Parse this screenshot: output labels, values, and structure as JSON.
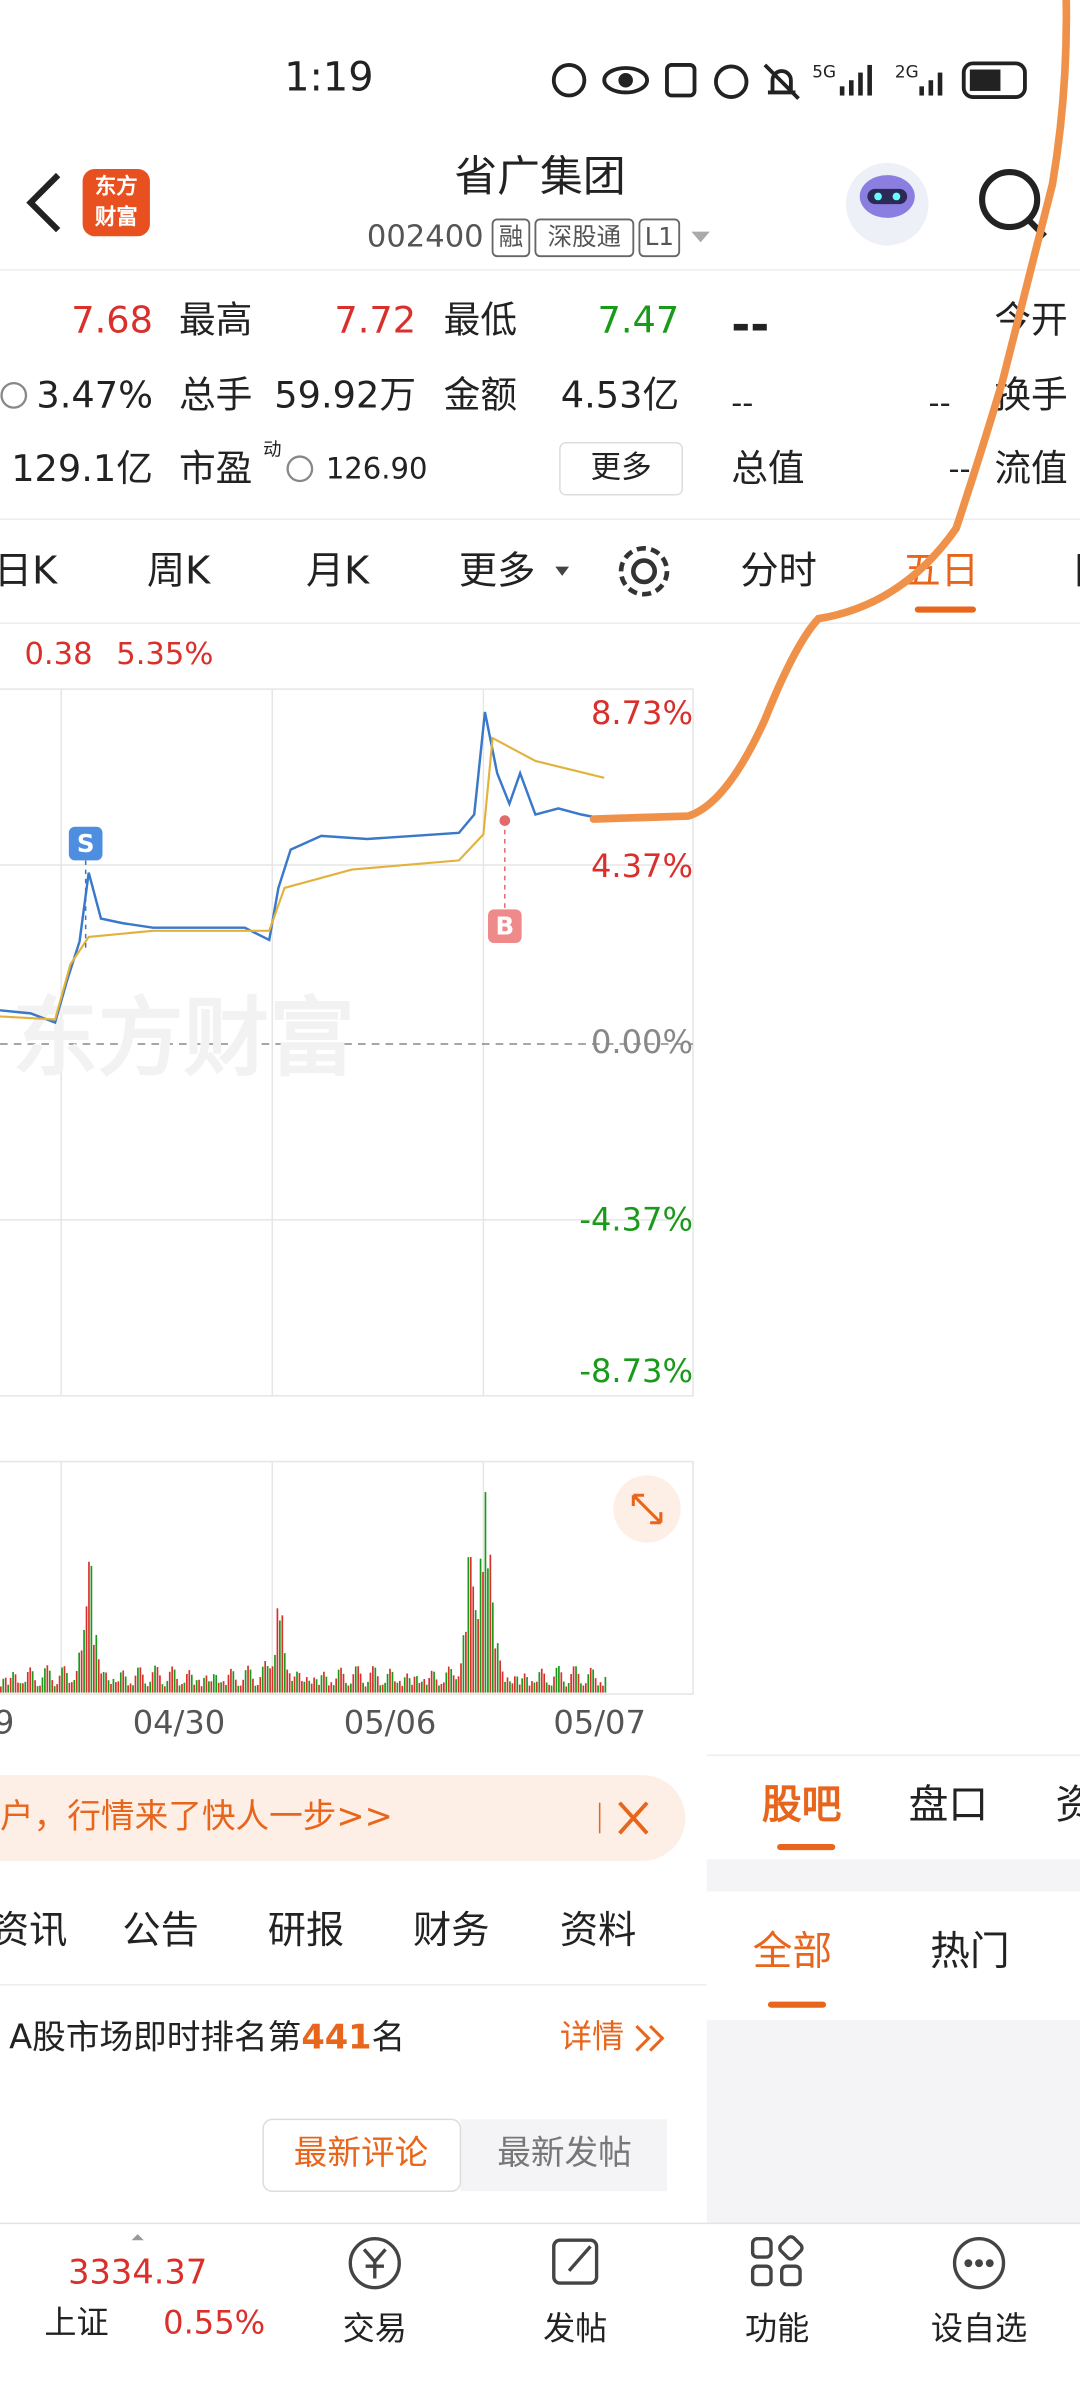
{
  "status": {
    "time": "1:19",
    "net1": "5G",
    "net2": "2G"
  },
  "header": {
    "logo": [
      "东方",
      "财富"
    ],
    "title": "省广集团",
    "code": "002400",
    "badges": [
      "融",
      "深股通",
      "L1"
    ]
  },
  "quote": {
    "row1": [
      "7.68",
      "最高",
      "7.72",
      "最低",
      "7.47",
      "--",
      "今开"
    ],
    "row2": [
      "3.47%",
      "总手",
      "59.92万",
      "金额",
      "4.53亿",
      "--",
      "--",
      "换手"
    ],
    "row3": [
      "129.1亿",
      "市盈",
      "动",
      "126.90",
      "更多",
      "总值",
      "--",
      "流值"
    ]
  },
  "chart_tabs": [
    "日K",
    "周K",
    "月K",
    "更多",
    "分时",
    "五日",
    "日"
  ],
  "info": [
    "0.38",
    "5.35%"
  ],
  "chart": {
    "y_labels": [
      "8.73%",
      "4.37%",
      "0.00%",
      "-4.37%",
      "-8.73%"
    ],
    "markers": [
      "S",
      "B"
    ],
    "watermark": "东方财富",
    "dates": [
      "9",
      "04/30",
      "05/06",
      "05/07"
    ]
  },
  "banner": "户，行情来了快人一步>>",
  "news_tabs": [
    "资讯",
    "公告",
    "研报",
    "财务",
    "资料"
  ],
  "side_tabs": [
    "股吧",
    "盘口",
    "资"
  ],
  "side_subtabs": [
    "全部",
    "热门"
  ],
  "rank": {
    "prefix": "A股市场即时排名第",
    "number": "441",
    "suffix": "名",
    "link": "详情"
  },
  "comment_buttons": [
    "最新评论",
    "最新发帖"
  ],
  "bottom_nav": {
    "index_value": "3334.37",
    "index_name": "上证",
    "index_change": "0.55%",
    "items": [
      "交易",
      "发帖",
      "功能",
      "设自选"
    ]
  }
}
